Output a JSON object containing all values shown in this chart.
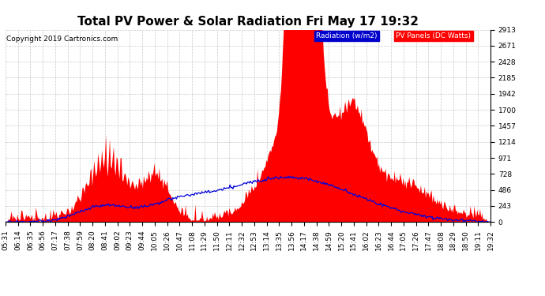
{
  "title": "Total PV Power & Solar Radiation Fri May 17 19:32",
  "copyright": "Copyright 2019 Cartronics.com",
  "legend_radiation": "Radiation (w/m2)",
  "legend_pv": "PV Panels (DC Watts)",
  "yticks": [
    0.0,
    242.8,
    485.6,
    728.3,
    971.1,
    1213.9,
    1456.7,
    1699.5,
    1942.2,
    2185.0,
    2427.8,
    2670.6,
    2913.3
  ],
  "ymax": 2913.3,
  "background_color": "#ffffff",
  "plot_bg_color": "#ffffff",
  "grid_color": "#bbbbbb",
  "pv_color": "#ff0000",
  "radiation_color": "#0000dd",
  "title_fontsize": 11,
  "tick_fontsize": 6.5,
  "xtick_labels": [
    "05:31",
    "06:14",
    "06:35",
    "06:56",
    "07:17",
    "07:38",
    "07:59",
    "08:20",
    "08:41",
    "09:02",
    "09:23",
    "09:44",
    "10:05",
    "10:26",
    "10:47",
    "11:08",
    "11:29",
    "11:50",
    "12:11",
    "12:32",
    "12:53",
    "13:14",
    "13:35",
    "13:56",
    "14:17",
    "14:38",
    "14:59",
    "15:20",
    "15:41",
    "16:02",
    "16:23",
    "16:44",
    "17:05",
    "17:26",
    "17:47",
    "18:08",
    "18:29",
    "18:50",
    "19:11",
    "19:32"
  ]
}
